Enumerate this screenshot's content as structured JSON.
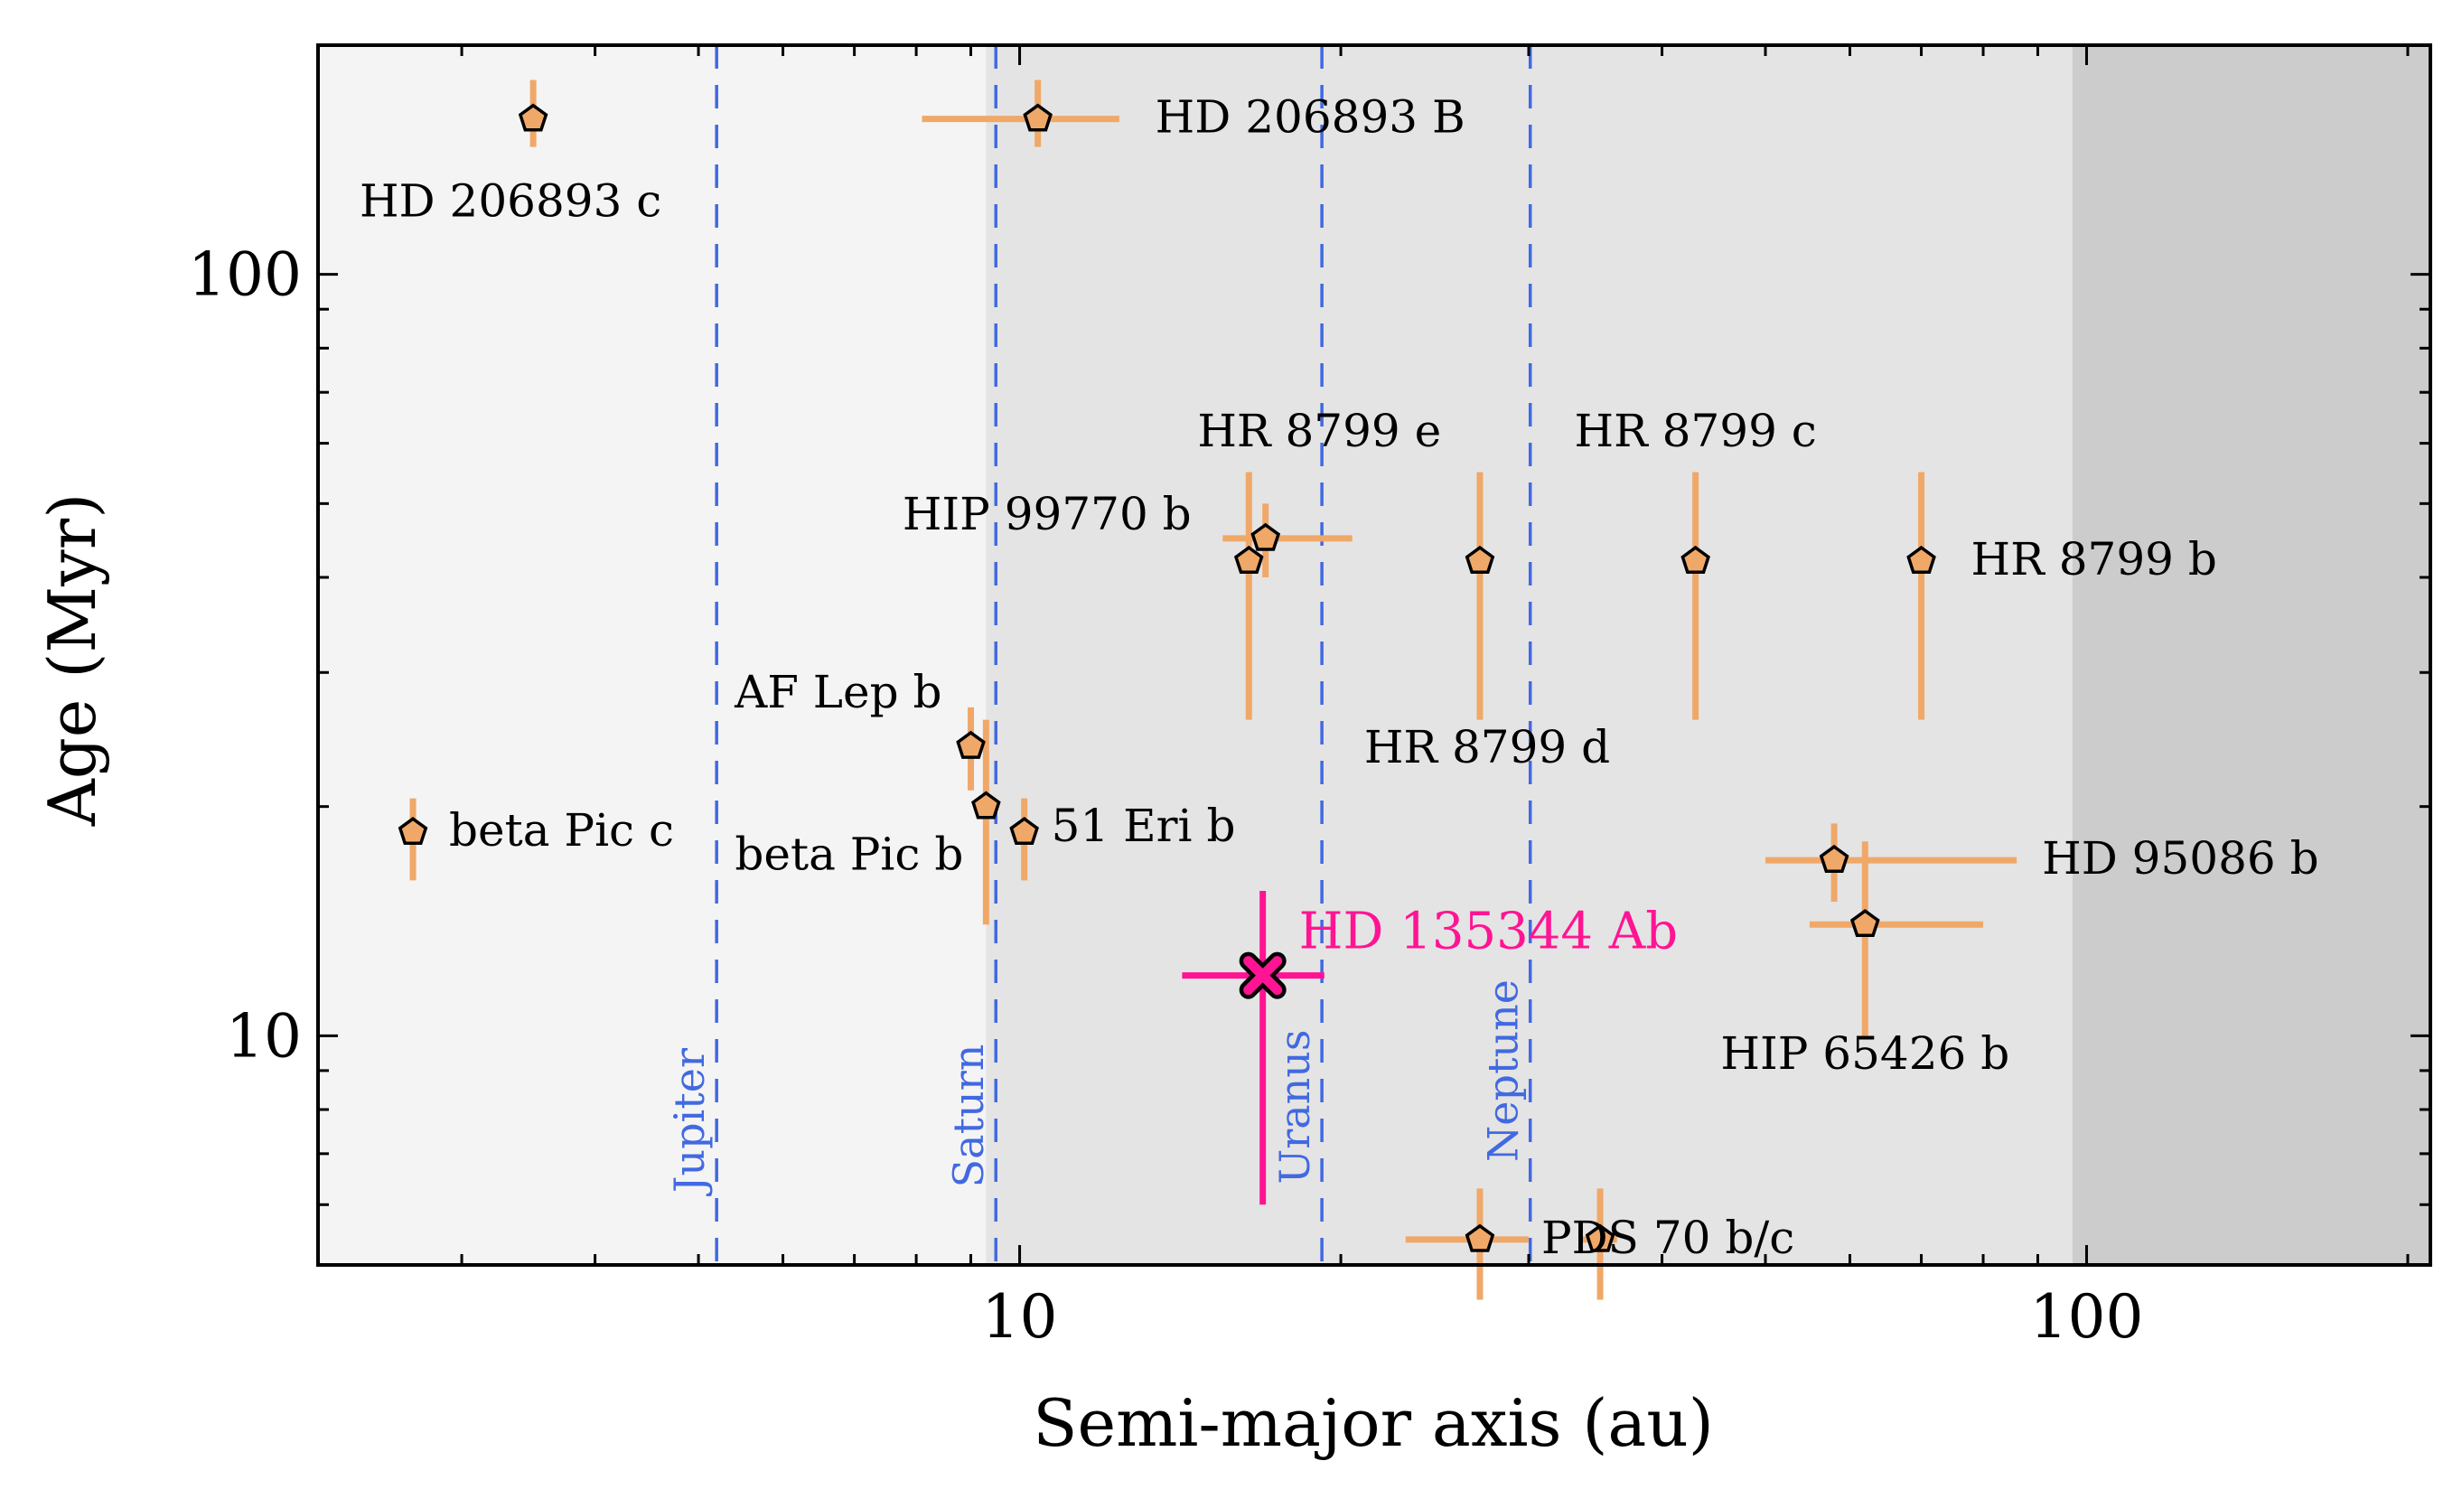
{
  "chart_data": {
    "type": "scatter",
    "title": "",
    "xlabel": "Semi-major axis (au)",
    "ylabel": "Age (Myr)",
    "xscale": "log",
    "yscale": "log",
    "xlim": [
      2.2,
      210
    ],
    "ylim": [
      5,
      200
    ],
    "xticks": [
      {
        "value": 10,
        "label": "10"
      },
      {
        "value": 100,
        "label": "100"
      }
    ],
    "yticks": [
      {
        "value": 10,
        "label": "10"
      },
      {
        "value": 100,
        "label": "100"
      }
    ],
    "grid": false,
    "regions": [
      {
        "x0": 2.2,
        "x1": 9.3,
        "color": "#f4f4f4"
      },
      {
        "x0": 9.3,
        "x1": 97,
        "color": "#e4e4e4"
      },
      {
        "x0": 97,
        "x1": 210,
        "color": "#cccccc"
      }
    ],
    "reference_lines": [
      {
        "label": "Jupiter",
        "x": 5.2
      },
      {
        "label": "Saturn",
        "x": 9.5
      },
      {
        "label": "Uranus",
        "x": 19.2
      },
      {
        "label": "Neptune",
        "x": 30.1
      }
    ],
    "colors": {
      "companions": "#f0a868",
      "errorbars": "#f0a868",
      "highlight": "#ff1493",
      "reference_lines": "#4169e1",
      "marker_edge": "#000000",
      "axes": "#000000"
    },
    "series": [
      {
        "marker": "pentagon",
        "points": [
          {
            "label": "HD 206893 c",
            "x": 3.5,
            "y": 160,
            "yerr": [
              13,
              20
            ]
          },
          {
            "label": "HD 206893 B",
            "x": 10.4,
            "y": 160,
            "xerr": [
              2.3,
              2.0
            ],
            "yerr": [
              13,
              20
            ]
          },
          {
            "label": "HIP 99770 b",
            "x": 17.0,
            "y": 45,
            "xerr": [
              1.5,
              3.5
            ],
            "yerr": [
              5,
              5
            ]
          },
          {
            "label": "HR 8799 e",
            "x": 16.4,
            "y": 42,
            "yerr": [
              16,
              13
            ]
          },
          {
            "label": "HR 8799 d",
            "x": 27,
            "y": 42,
            "yerr": [
              16,
              13
            ]
          },
          {
            "label": "HR 8799 c",
            "x": 43,
            "y": 42,
            "yerr": [
              16,
              13
            ]
          },
          {
            "label": "HR 8799 b",
            "x": 70,
            "y": 42,
            "yerr": [
              16,
              13
            ]
          },
          {
            "label": "AF Lep b",
            "x": 9.0,
            "y": 24,
            "yerr": [
              3,
              3
            ]
          },
          {
            "label": "beta Pic b",
            "x": 9.3,
            "y": 20,
            "yerr": [
              6,
              6
            ]
          },
          {
            "label": "51 Eri b",
            "x": 10.1,
            "y": 18.5,
            "yerr": [
              2.5,
              2
            ]
          },
          {
            "label": "beta Pic c",
            "x": 2.7,
            "y": 18.5,
            "yerr": [
              2.5,
              2
            ]
          },
          {
            "label": "HD 95086 b",
            "x": 58,
            "y": 17,
            "xerr": [
              8,
              28
            ],
            "yerr": [
              2,
              2
            ]
          },
          {
            "label": "HIP 65426 b",
            "x": 62,
            "y": 14,
            "xerr": [
              7,
              18
            ],
            "yerr": [
              4,
              4
            ]
          },
          {
            "label": "PDS 70 b/c",
            "x": 27,
            "y": 5.4,
            "xerr": [
              4,
              3
            ],
            "yerr": [
              0.9,
              0.9
            ]
          },
          {
            "label": "",
            "x": 35,
            "y": 5.4,
            "xerr": [
              1.3,
              1.3
            ],
            "yerr": [
              0.9,
              0.9
            ]
          }
        ]
      },
      {
        "marker": "x",
        "highlight": true,
        "points": [
          {
            "label": "HD 135344 Ab",
            "x": 16.9,
            "y": 12,
            "xerr": [
              2.7,
              2.4
            ],
            "yerr": [
              6,
              3.5
            ]
          }
        ]
      }
    ]
  }
}
